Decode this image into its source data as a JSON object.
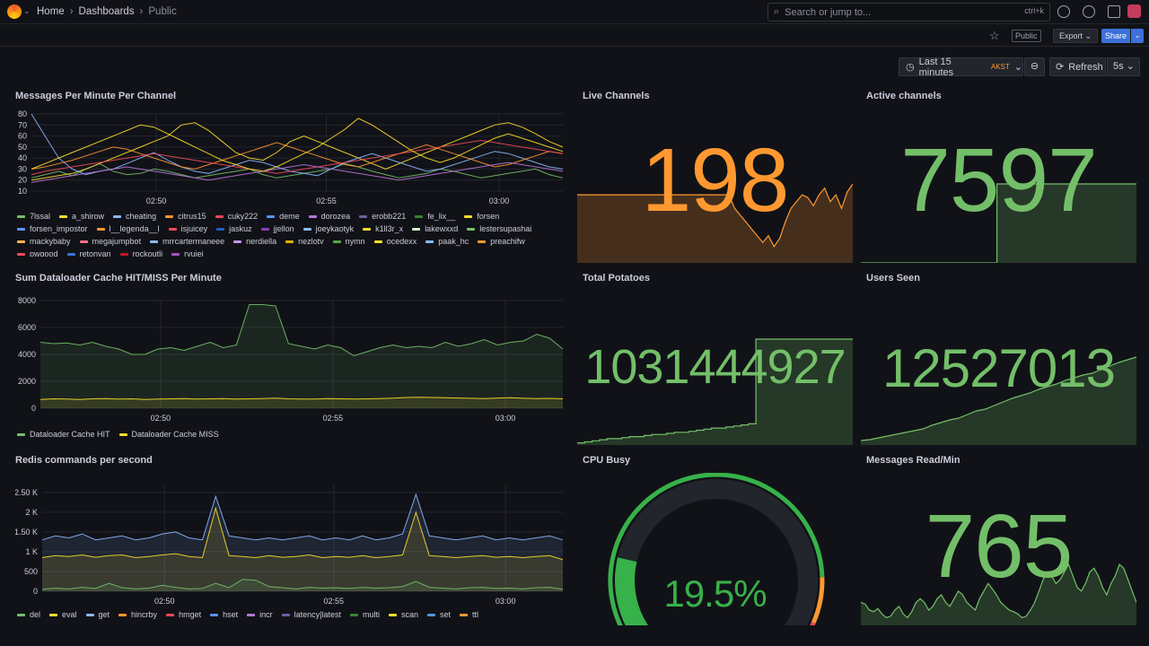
{
  "breadcrumb": {
    "home": "Home",
    "dashboards": "Dashboards",
    "current": "Public"
  },
  "search": {
    "placeholder": "Search or jump to...",
    "shortcut": "ctrl+k"
  },
  "toolbar": {
    "public_badge": "Public",
    "export_label": "Export",
    "share_label": "Share"
  },
  "timepicker": {
    "range": "Last 15 minutes",
    "timezone": "AKST",
    "refresh_label": "Refresh",
    "interval": "5s"
  },
  "colors": {
    "green": "#73bf69",
    "orange": "#ff9830",
    "yellow": "#fade2a",
    "bg": "#111217",
    "panel_line": "#24262e"
  },
  "panels": {
    "messages": {
      "title": "Messages Per Minute Per Channel",
      "legend": [
        "7lssal",
        "a_shirow",
        "cheating",
        "citrus15",
        "cuky222",
        "deme",
        "dorozea",
        "erobb221",
        "fe_lix__",
        "forsen",
        "forsen_impostor",
        "l__legenda__l",
        "isjuicey",
        "jaskuz",
        "jjellon",
        "joeykaotyk",
        "k1ll3r_x",
        "lakewxxd",
        "lestersupashai",
        "mackybaby",
        "megajumpbot",
        "mrrcartermaneee",
        "nerdiella",
        "nezlotv",
        "nymn",
        "ocedexx",
        "paak_hc",
        "preachifw",
        "pwgood",
        "retonyan",
        "rockoutli",
        "ryujei"
      ],
      "legend_colors": [
        "#73bf69",
        "#fade2a",
        "#8ab8ff",
        "#ff9830",
        "#f2495c",
        "#5794f2",
        "#b877d9",
        "#705da0",
        "#37872d",
        "#fade2a",
        "#5794f2",
        "#ff9830",
        "#f2495c",
        "#1f60c4",
        "#8f3bb8",
        "#8ab8ff",
        "#fade2a",
        "#c8f2c2",
        "#73bf69",
        "#ffb357",
        "#ff7383",
        "#8ab8ff",
        "#ca95e5",
        "#e0b400",
        "#56a64b",
        "#fade2a",
        "#8ab8ff",
        "#ff9830",
        "#f2495c",
        "#3274d9",
        "#c4162a",
        "#a352cc"
      ]
    },
    "live_channels": {
      "title": "Live Channels",
      "value": "198"
    },
    "active_channels": {
      "title": "Active channels",
      "value": "7597"
    },
    "dataloader": {
      "title": "Sum Dataloader Cache HIT/MISS Per Minute",
      "legend": [
        "Dataloader Cache HIT",
        "Dataloader Cache MISS"
      ],
      "legend_colors": [
        "#73bf69",
        "#fade2a"
      ]
    },
    "total_potatoes": {
      "title": "Total Potatoes",
      "value": "1031444927"
    },
    "users_seen": {
      "title": "Users Seen",
      "value": "12527013"
    },
    "redis": {
      "title": "Redis commands per second",
      "legend": [
        "del",
        "eval",
        "get",
        "hincrby",
        "hmget",
        "hset",
        "incr",
        "latency|latest",
        "multi",
        "scan",
        "set",
        "ttl"
      ],
      "legend_colors": [
        "#73bf69",
        "#fade2a",
        "#8ab8ff",
        "#ff9830",
        "#f2495c",
        "#5794f2",
        "#b877d9",
        "#705da0",
        "#37872d",
        "#fade2a",
        "#5794f2",
        "#ff9830"
      ]
    },
    "cpu_busy": {
      "title": "CPU Busy",
      "value": "19.5%",
      "percent": 19.5
    },
    "messages_read": {
      "title": "Messages Read/Min",
      "value": "765"
    }
  },
  "chart_data": [
    {
      "type": "line",
      "name_ref": "messages",
      "x_ticks": [
        "02:50",
        "02:55",
        "03:00"
      ],
      "y_ticks": [
        "80",
        "70",
        "60",
        "50",
        "40",
        "30",
        "20",
        "10"
      ],
      "ylim": [
        10,
        80
      ],
      "series_values": [
        [
          22,
          25,
          28,
          24,
          30,
          35,
          28,
          25,
          26,
          30,
          28,
          25,
          22,
          24,
          26,
          28,
          30,
          25,
          22,
          24,
          26,
          28,
          30,
          35,
          32,
          28,
          25,
          22,
          24,
          26,
          30,
          28,
          25,
          22,
          24,
          26,
          28,
          30,
          25,
          22
        ],
        [
          20,
          22,
          24,
          26,
          30,
          35,
          40,
          45,
          50,
          55,
          60,
          70,
          72,
          65,
          55,
          45,
          40,
          38,
          45,
          55,
          60,
          55,
          50,
          45,
          40,
          35,
          30,
          35,
          40,
          45,
          50,
          55,
          60,
          65,
          70,
          72,
          68,
          62,
          55,
          50
        ],
        [
          80,
          60,
          40,
          30,
          25,
          28,
          30,
          35,
          40,
          45,
          38,
          32,
          28,
          26,
          30,
          34,
          38,
          36,
          32,
          28,
          26,
          24,
          30,
          36,
          40,
          44,
          40,
          36,
          32,
          28,
          30,
          34,
          38,
          42,
          46,
          44,
          40,
          36,
          32,
          30
        ],
        [
          30,
          32,
          35,
          38,
          42,
          46,
          50,
          48,
          44,
          40,
          36,
          32,
          30,
          34,
          38,
          42,
          46,
          50,
          54,
          50,
          46,
          42,
          38,
          34,
          32,
          36,
          40,
          44,
          48,
          52,
          48,
          44,
          40,
          36,
          32,
          34,
          38,
          42,
          46,
          44
        ],
        [
          25,
          28,
          30,
          32,
          34,
          36,
          38,
          40,
          42,
          44,
          42,
          40,
          38,
          36,
          34,
          32,
          30,
          28,
          26,
          28,
          30,
          32,
          34,
          36,
          38,
          40,
          42,
          44,
          46,
          48,
          50,
          52,
          54,
          56,
          54,
          52,
          50,
          48,
          46,
          44
        ],
        [
          18,
          20,
          22,
          24,
          26,
          28,
          30,
          32,
          30,
          28,
          26,
          24,
          22,
          20,
          22,
          24,
          26,
          28,
          30,
          32,
          34,
          32,
          30,
          28,
          26,
          24,
          22,
          20,
          22,
          24,
          26,
          28,
          30,
          32,
          34,
          36,
          34,
          32,
          30,
          28
        ],
        [
          30,
          35,
          40,
          45,
          50,
          55,
          60,
          65,
          70,
          68,
          62,
          56,
          50,
          44,
          38,
          34,
          30,
          28,
          32,
          38,
          44,
          50,
          58,
          66,
          76,
          70,
          62,
          54,
          46,
          40,
          36,
          40,
          46,
          52,
          58,
          62,
          58,
          54,
          50,
          46
        ]
      ]
    },
    {
      "type": "area",
      "name_ref": "dataloader",
      "x_ticks": [
        "02:50",
        "02:55",
        "03:00"
      ],
      "y_ticks": [
        "8000",
        "6000",
        "4000",
        "2000",
        "0"
      ],
      "ylim": [
        0,
        8000
      ],
      "series": [
        {
          "name": "Dataloader Cache HIT",
          "values": [
            4900,
            4800,
            4850,
            4700,
            4900,
            4600,
            4400,
            4000,
            4000,
            4400,
            4500,
            4300,
            4600,
            4900,
            4500,
            4700,
            7700,
            7700,
            7600,
            4800,
            4600,
            4400,
            4700,
            4500,
            3900,
            4200,
            4500,
            4700,
            4500,
            4600,
            4500,
            4900,
            4600,
            4800,
            5100,
            4700,
            4900,
            5000,
            5500,
            5200,
            4400
          ]
        },
        {
          "name": "Dataloader Cache MISS",
          "values": [
            650,
            700,
            680,
            650,
            700,
            720,
            680,
            700,
            650,
            680,
            700,
            720,
            680,
            700,
            710,
            690,
            700,
            720,
            750,
            700,
            680,
            690,
            720,
            700,
            680,
            700,
            720,
            750,
            800,
            820,
            800,
            780,
            760,
            740,
            720,
            760,
            780,
            740,
            720,
            730,
            700
          ]
        }
      ]
    },
    {
      "type": "area",
      "name_ref": "redis",
      "x_ticks": [
        "02:50",
        "02:55",
        "03:00"
      ],
      "y_ticks": [
        "2.50 K",
        "2 K",
        "1.50 K",
        "1 K",
        "500",
        "0"
      ],
      "ylim": [
        0,
        2700
      ],
      "series": [
        {
          "name": "get",
          "values": [
            1300,
            1400,
            1350,
            1450,
            1300,
            1350,
            1400,
            1300,
            1350,
            1450,
            1500,
            1350,
            1300,
            2400,
            1400,
            1350,
            1300,
            1350,
            1300,
            1350,
            1400,
            1300,
            1350,
            1300,
            1400,
            1300,
            1350,
            1450,
            2450,
            1400,
            1350,
            1300,
            1350,
            1400,
            1300,
            1350,
            1300,
            1350,
            1400,
            1300
          ]
        },
        {
          "name": "eval",
          "values": [
            850,
            900,
            880,
            920,
            860,
            900,
            920,
            850,
            880,
            920,
            950,
            880,
            850,
            2100,
            900,
            880,
            850,
            900,
            860,
            880,
            920,
            850,
            880,
            860,
            900,
            850,
            880,
            920,
            2000,
            900,
            880,
            850,
            880,
            900,
            860,
            880,
            850,
            880,
            900,
            800
          ]
        },
        {
          "name": "del",
          "values": [
            50,
            80,
            60,
            100,
            70,
            200,
            90,
            60,
            80,
            150,
            100,
            60,
            70,
            200,
            90,
            300,
            280,
            120,
            90,
            60,
            100,
            80,
            90,
            70,
            100,
            80,
            90,
            120,
            250,
            100,
            80,
            60,
            90,
            100,
            70,
            80,
            60,
            90,
            100,
            50
          ]
        }
      ]
    },
    {
      "type": "area",
      "name_ref": "live_channels",
      "values": [
        50,
        50,
        50,
        50,
        50,
        50,
        50,
        50,
        50,
        50,
        50,
        50,
        50,
        50,
        50,
        50,
        50,
        50,
        50,
        50,
        50,
        50,
        50,
        50,
        50,
        50,
        50,
        50,
        40,
        35,
        30,
        25,
        20,
        15,
        20,
        12,
        18,
        30,
        40,
        45,
        50,
        48,
        42,
        50,
        55,
        45,
        50,
        40,
        52,
        58
      ]
    },
    {
      "type": "area",
      "name_ref": "active_channels",
      "values": [
        0,
        0,
        0,
        0,
        0,
        0,
        0,
        0,
        0,
        0,
        0,
        0,
        0,
        0,
        0,
        0,
        0,
        0,
        0,
        0,
        0,
        0,
        0,
        0,
        0,
        0,
        0,
        0,
        0,
        0,
        0,
        0,
        0,
        0,
        0,
        0,
        0,
        0,
        0,
        100,
        100,
        100,
        100,
        100,
        100,
        100,
        100,
        100,
        100,
        100,
        100,
        100,
        100,
        100,
        100,
        100,
        100,
        100,
        100,
        100,
        100,
        100,
        100,
        100,
        100,
        100,
        100,
        100,
        100,
        100,
        100,
        100,
        100,
        100,
        100,
        100,
        100,
        100,
        100,
        100
      ]
    },
    {
      "type": "area",
      "name_ref": "total_potatoes",
      "values": [
        2,
        3,
        4,
        5,
        6,
        6,
        7,
        8,
        8,
        9,
        10,
        10,
        11,
        12,
        12,
        13,
        14,
        15,
        16,
        16,
        17,
        18,
        19,
        20,
        100,
        100,
        100,
        100,
        100,
        100,
        100,
        100,
        100,
        100,
        100,
        100,
        100,
        100
      ]
    },
    {
      "type": "area",
      "name_ref": "users_seen",
      "values": [
        5,
        6,
        8,
        10,
        12,
        14,
        16,
        18,
        22,
        25,
        28,
        30,
        34,
        38,
        40,
        44,
        48,
        52,
        55,
        58,
        62,
        65,
        68,
        72,
        75,
        78,
        80,
        84,
        88,
        92,
        95,
        98
      ]
    },
    {
      "type": "area",
      "name_ref": "messages_read",
      "values": [
        30,
        28,
        20,
        18,
        22,
        15,
        10,
        12,
        20,
        25,
        15,
        10,
        18,
        30,
        35,
        30,
        20,
        25,
        35,
        40,
        30,
        25,
        35,
        45,
        40,
        30,
        25,
        20,
        35,
        45,
        55,
        48,
        40,
        30,
        25,
        20,
        18,
        15,
        10,
        12,
        20,
        30,
        45,
        60,
        70,
        65,
        55,
        60,
        70,
        80,
        65,
        50,
        45,
        55,
        70,
        75,
        65,
        50,
        40,
        55,
        65,
        80,
        75,
        60,
        45,
        30
      ]
    }
  ]
}
